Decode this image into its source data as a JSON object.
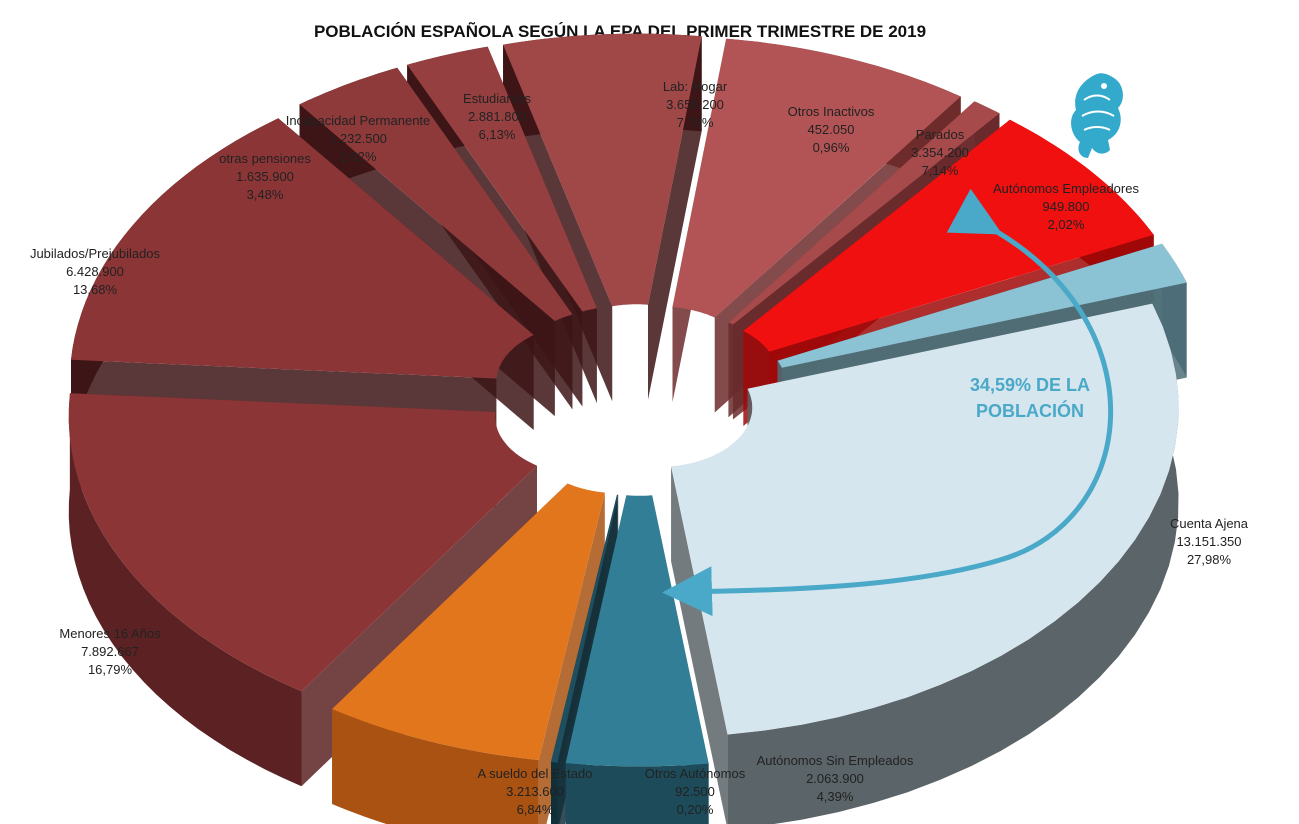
{
  "chart_data": {
    "type": "pie",
    "title": "POBLACIÓN ESPAÑOLA SEGÚN LA EPA DEL PRIMER TRIMESTRE DE 2019",
    "slices": [
      {
        "label": "Cuenta Ajena",
        "value": "13.151.350",
        "pct": "27,98%",
        "v": 27.98,
        "color": "#d6e6ee",
        "side": "#5b6468",
        "dist": 10
      },
      {
        "label": "Autónomos Sin Empleados",
        "value": "2.063.900",
        "pct": "4,39%",
        "v": 4.39,
        "color": "#327e96",
        "side": "#1d4b5a",
        "dist": 26
      },
      {
        "label": "Otros Autónomos",
        "value": "92.500",
        "pct": "0,20%",
        "v": 0.2,
        "color": "#1d4f60",
        "side": "#122f3a",
        "dist": 26
      },
      {
        "label": "A sueldo del Estado",
        "value": "3.213.600",
        "pct": "6,84%",
        "v": 6.84,
        "color": "#e2761c",
        "side": "#a95212",
        "dist": 26
      },
      {
        "label": "Menores 16 Años",
        "value": "7.892.667",
        "pct": "16,79%",
        "v": 16.79,
        "color": "#8c3536",
        "side": "#5c2223",
        "dist": 26
      },
      {
        "label": "Jubilados/Prejubilados",
        "value": "6.428.900",
        "pct": "13,68%",
        "v": 13.68,
        "color": "#8c3536",
        "side": "#3d1516",
        "dist": 26
      },
      {
        "label": "otras pensiones",
        "value": "1.635.900",
        "pct": "3,48%",
        "v": 3.48,
        "color": "#8e3a3b",
        "side": "#3d1516",
        "dist": 26
      },
      {
        "label": "Incapacidad Permanente",
        "value": "1.232.500",
        "pct": "2,62%",
        "v": 2.62,
        "color": "#963f40",
        "side": "#3d1516",
        "dist": 26
      },
      {
        "label": "Estudiantes",
        "value": "2.881.800",
        "pct": "6,13%",
        "v": 6.13,
        "color": "#a04748",
        "side": "#3d1516",
        "dist": 26
      },
      {
        "label": "Lab: Hogar",
        "value": "3.658.200",
        "pct": "7,78%",
        "v": 7.78,
        "color": "#b25455",
        "side": "#6e2c2d",
        "dist": 26
      },
      {
        "label": "Otros Inactivos",
        "value": "452.050",
        "pct": "0,96%",
        "v": 0.96,
        "color": "#a64a4b",
        "side": "#6a2a2b",
        "dist": 26
      },
      {
        "label": "Parados",
        "value": "3.354.200",
        "pct": "7,14%",
        "v": 7.14,
        "color": "#f01010",
        "side": "#a00808",
        "dist": 26
      },
      {
        "label": "Autónomos Empleadores",
        "value": "949.800",
        "pct": "2,02%",
        "v": 2.02,
        "color": "#8cc3d4",
        "side": "#4e6e78",
        "dist": 26
      }
    ],
    "annotation": {
      "line1": "34,59% DE LA",
      "line2": "POBLACIÓN",
      "color": "#4aa8c8"
    }
  },
  "logo_icon": "griffin-logo-icon"
}
